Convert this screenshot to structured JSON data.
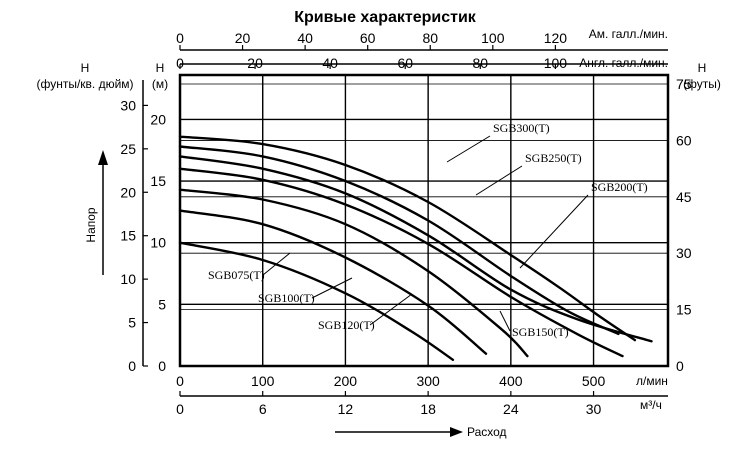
{
  "chart_data": {
    "type": "line",
    "title": "Кривые характеристик",
    "x_label": "Расход",
    "y_label": "Напор",
    "x_lpm": {
      "unit": "л/мин",
      "ticks": [
        0,
        100,
        200,
        300,
        400,
        500
      ],
      "range": [
        0,
        590
      ]
    },
    "x_m3h": {
      "unit": "м³/ч",
      "ticks": [
        0,
        6,
        12,
        18,
        24,
        30
      ],
      "range": [
        0,
        35.4
      ]
    },
    "x_usgpm": {
      "unit": "Ам. галл./мин.",
      "ticks": [
        0,
        20,
        40,
        60,
        80,
        100,
        120
      ],
      "range": [
        0,
        156
      ]
    },
    "x_igpm": {
      "unit": "Англ. галл./мин.",
      "ticks": [
        0,
        20,
        40,
        60,
        80,
        100
      ],
      "range": [
        0,
        130
      ]
    },
    "y_m": {
      "unit": "Н\n(м)",
      "ticks": [
        0,
        5,
        10,
        15,
        20
      ],
      "range": [
        0,
        23.6
      ]
    },
    "y_psi": {
      "unit": "Н\n(фунты/кв. дюйм)",
      "ticks": [
        0,
        5,
        10,
        15,
        20,
        25,
        30
      ],
      "range": [
        0,
        33.5
      ]
    },
    "y_ft": {
      "unit": "Н\n(футы)",
      "ticks": [
        0,
        15,
        30,
        45,
        60,
        75
      ],
      "range": [
        0,
        77.4
      ]
    },
    "series": [
      {
        "name": "SGB300(T)",
        "x": [
          0,
          100,
          200,
          300,
          400,
          460,
          510,
          550
        ],
        "y": [
          18.6,
          18.0,
          16.3,
          13.3,
          9.0,
          6.3,
          3.9,
          2.1
        ]
      },
      {
        "name": "SGB250(T)",
        "x": [
          0,
          100,
          200,
          300,
          400,
          470,
          530
        ],
        "y": [
          17.8,
          17.0,
          15.0,
          11.8,
          7.3,
          4.4,
          2.6
        ]
      },
      {
        "name": "SGB200(T)",
        "x": [
          0,
          100,
          200,
          300,
          400,
          480,
          570
        ],
        "y": [
          17.0,
          16.0,
          14.0,
          10.6,
          6.2,
          3.8,
          2.0
        ]
      },
      {
        "name": "SGB150(T)",
        "x": [
          0,
          100,
          200,
          300,
          400,
          480,
          535
        ],
        "y": [
          16.0,
          15.1,
          13.1,
          9.9,
          5.6,
          2.6,
          0.8
        ]
      },
      {
        "name": "SGB120(T)",
        "x": [
          0,
          100,
          200,
          300,
          390,
          420
        ],
        "y": [
          14.3,
          13.5,
          11.5,
          7.7,
          2.9,
          0.8
        ]
      },
      {
        "name": "SGB100(T)",
        "x": [
          0,
          100,
          200,
          300,
          370
        ],
        "y": [
          12.6,
          11.5,
          8.8,
          4.9,
          1.0
        ]
      },
      {
        "name": "SGB075(T)",
        "x": [
          0,
          100,
          200,
          280,
          330
        ],
        "y": [
          10.0,
          8.6,
          5.9,
          2.8,
          0.5
        ]
      }
    ],
    "grid": true
  }
}
